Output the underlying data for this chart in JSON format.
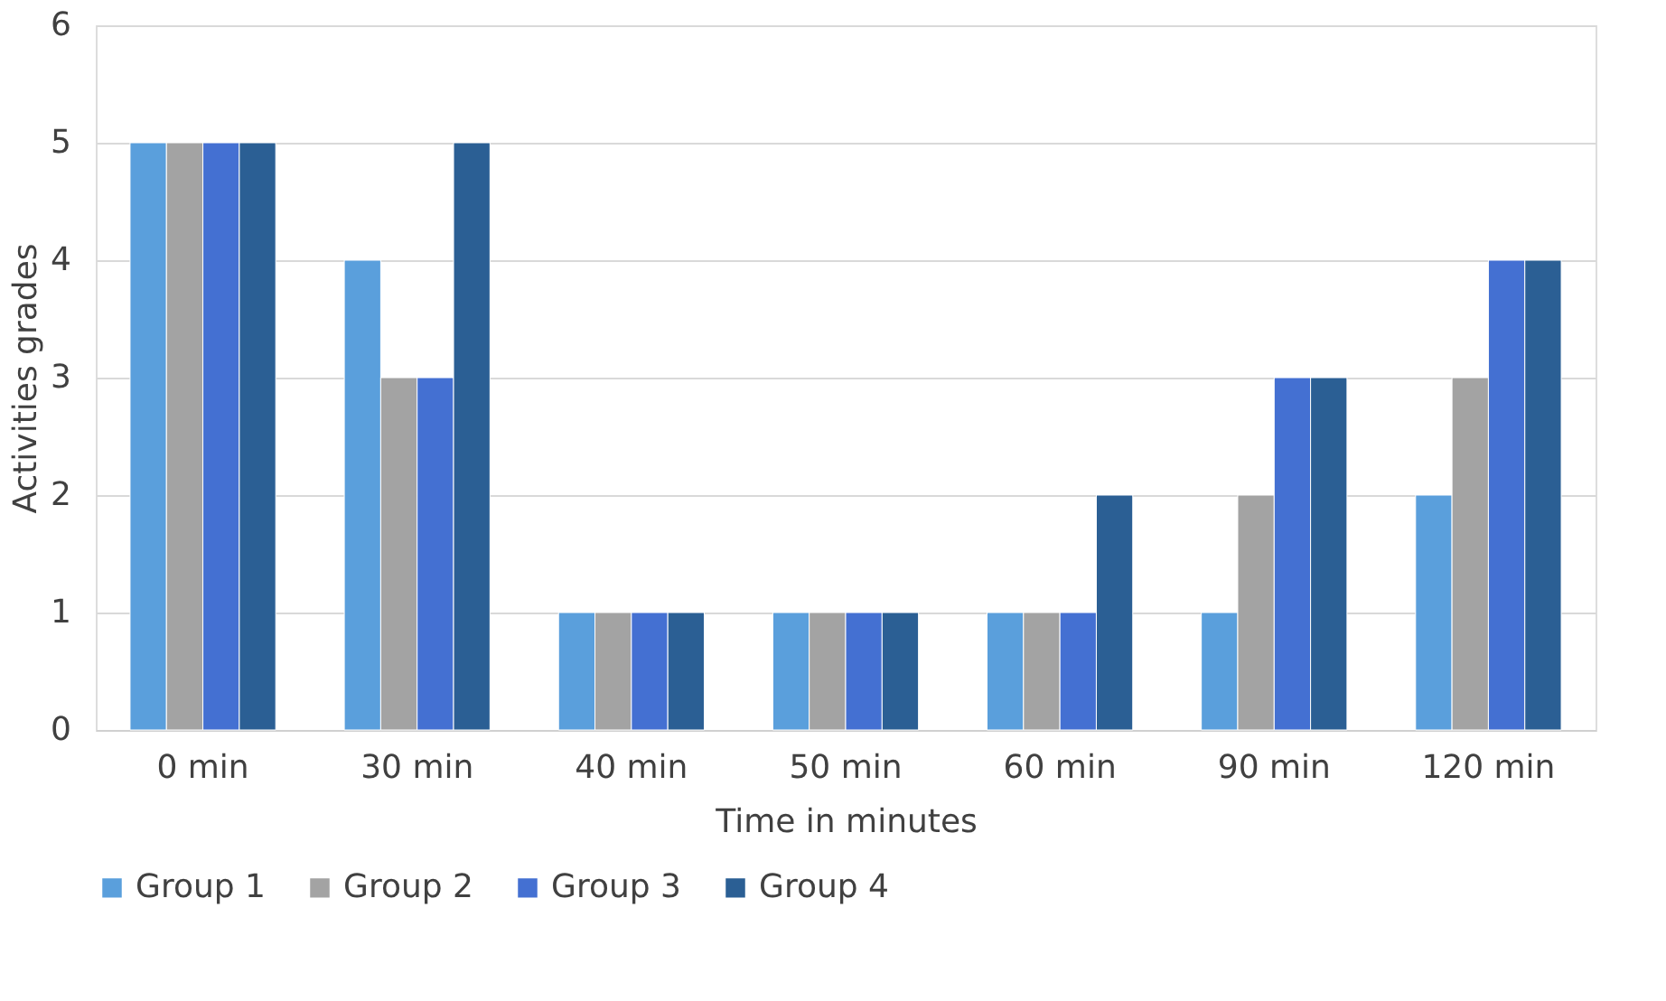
{
  "chart_data": {
    "type": "bar",
    "xlabel": "Time in minutes",
    "ylabel": "Activities grades",
    "categories": [
      "0 min",
      "30 min",
      "40 min",
      "50 min",
      "60 min",
      "90 min",
      "120 min"
    ],
    "series": [
      {
        "name": "Group 1",
        "color": "#5a9fdc",
        "values": [
          5,
          4,
          1,
          1,
          1,
          1,
          2
        ]
      },
      {
        "name": "Group 2",
        "color": "#a3a3a3",
        "values": [
          5,
          3,
          1,
          1,
          1,
          2,
          3
        ]
      },
      {
        "name": "Group 3",
        "color": "#4470d2",
        "values": [
          5,
          3,
          1,
          1,
          1,
          3,
          4
        ]
      },
      {
        "name": "Group 4",
        "color": "#2b5f94",
        "values": [
          5,
          5,
          1,
          1,
          2,
          3,
          4
        ]
      }
    ],
    "ylim": [
      0,
      6
    ],
    "yticks": [
      0,
      1,
      2,
      3,
      4,
      5,
      6
    ],
    "grid": "y",
    "legend": "bottom"
  }
}
